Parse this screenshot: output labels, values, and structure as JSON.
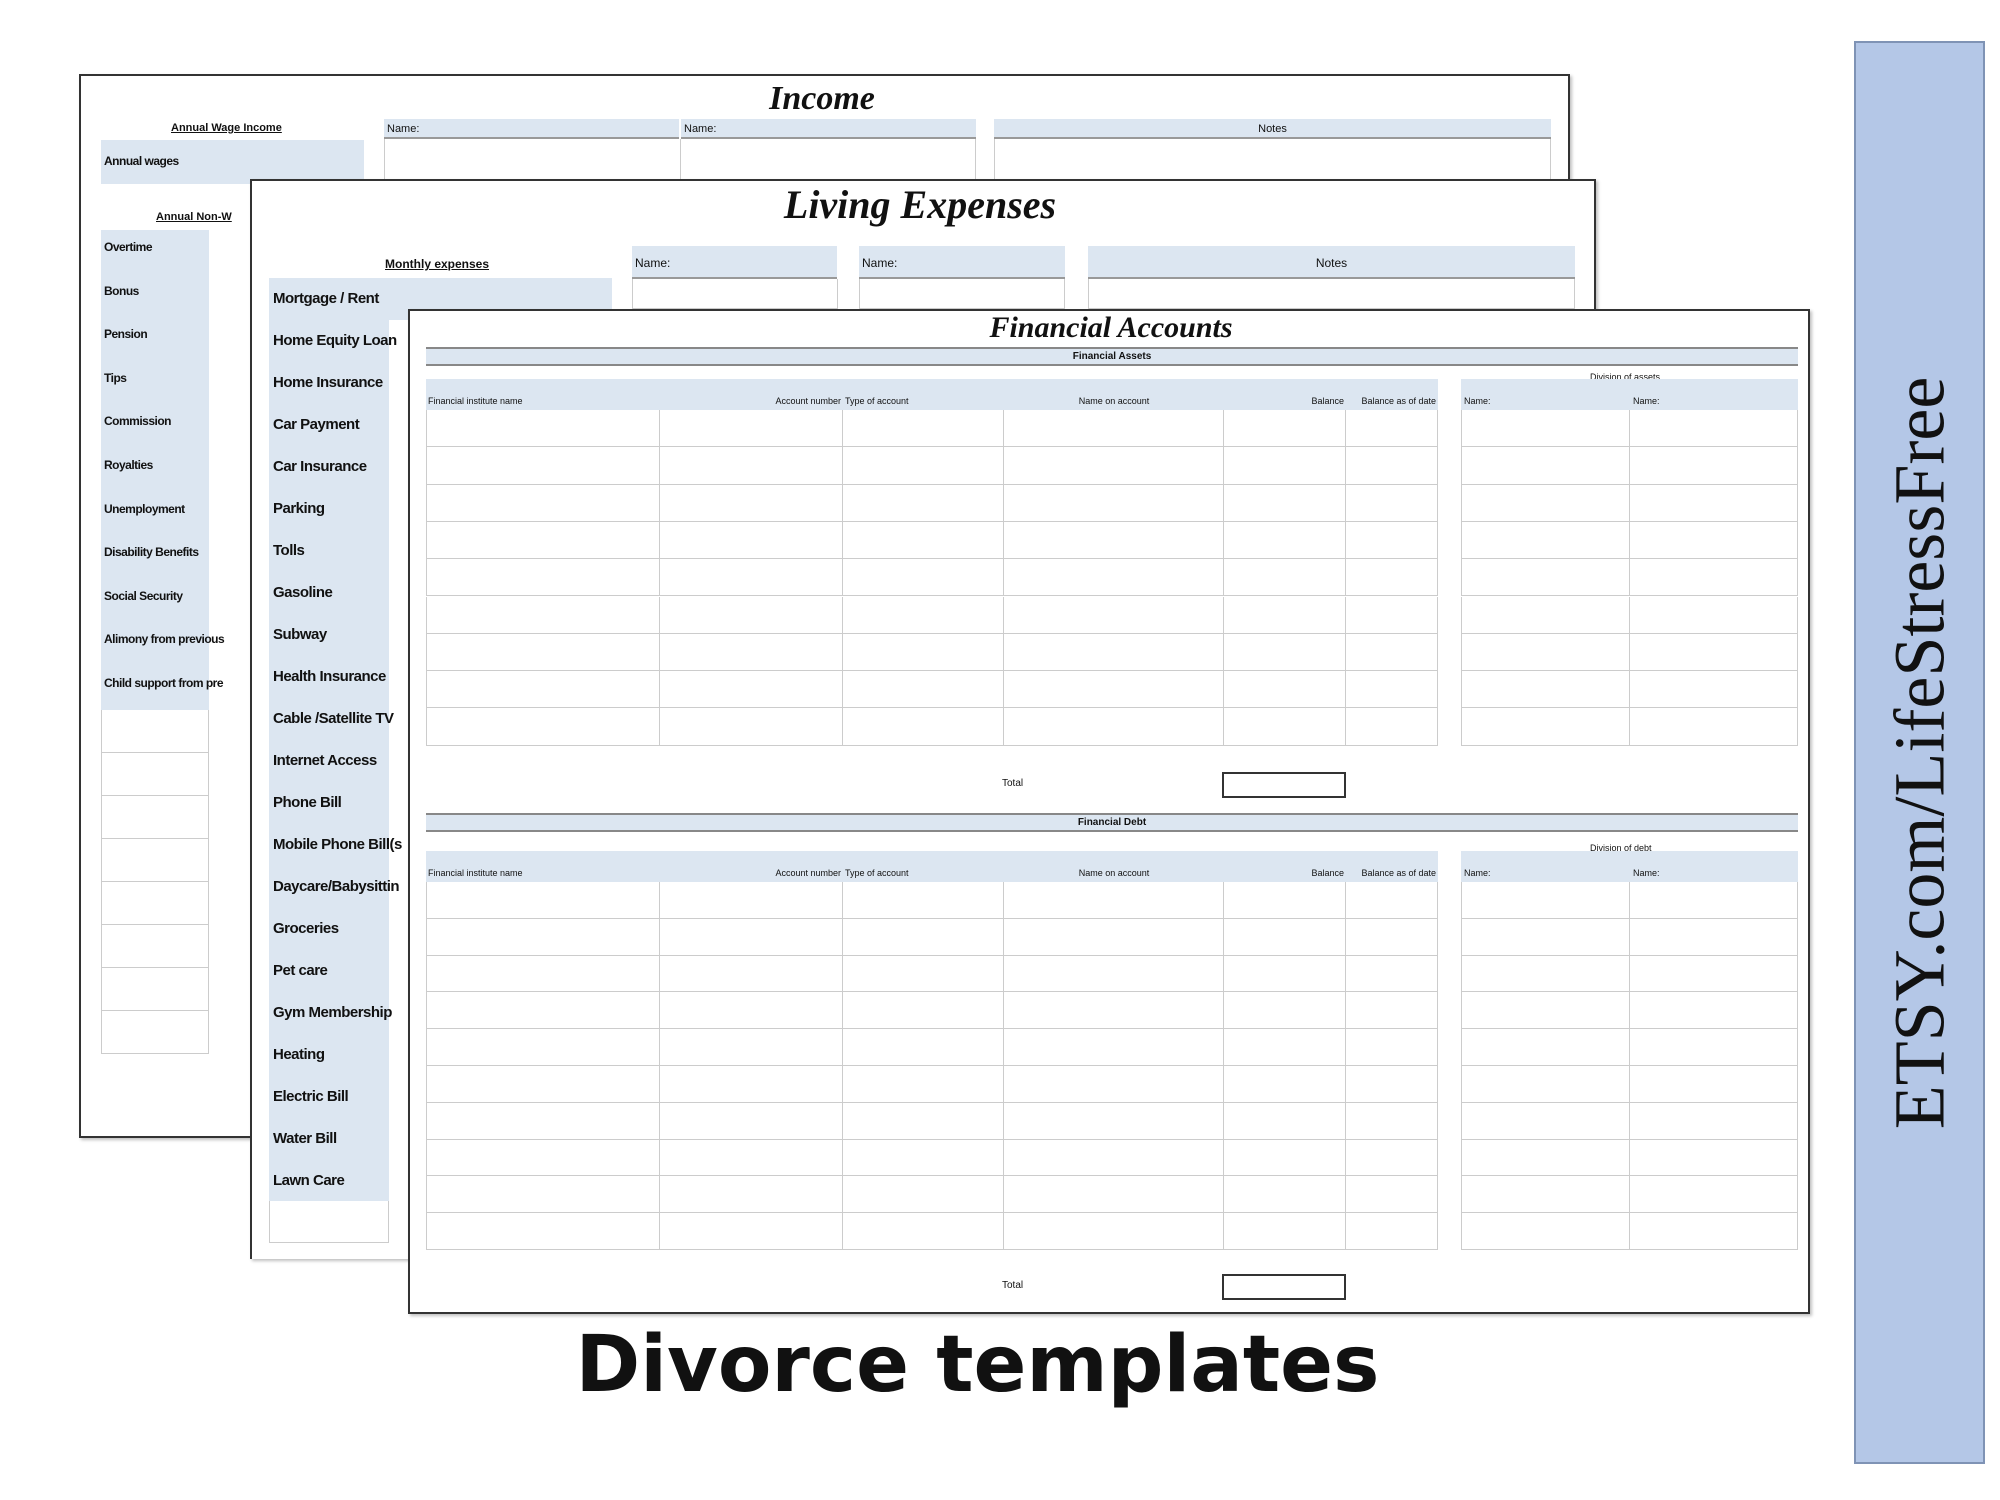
{
  "income": {
    "title": "Income",
    "section1": "Annual Wage Income",
    "name1": "Name:",
    "name2": "Name:",
    "notes": "Notes",
    "wage_label": "Annual wages",
    "section2": "Annual Non-W",
    "rows": [
      "Overtime",
      "Bonus",
      "Pension",
      "Tips",
      "Commission",
      "Royalties",
      "Unemployment",
      "Disability Benefits",
      "Social Security",
      "Alimony from previous",
      "Child support from pre"
    ]
  },
  "living": {
    "title": "Living Expenses",
    "section": "Monthly expenses",
    "name1": "Name:",
    "name2": "Name:",
    "notes": "Notes",
    "rows": [
      "Mortgage / Rent",
      "Home Equity Loan",
      "Home Insurance",
      "Car Payment",
      "Car Insurance",
      "Parking",
      "Tolls",
      "Gasoline",
      "Subway",
      "Health Insurance",
      "Cable /Satellite TV",
      "Internet Access",
      "Phone Bill",
      "Mobile Phone Bill(s",
      "Daycare/Babysittin",
      "Groceries",
      "Pet care",
      "Gym Membership",
      "Heating",
      "Electric Bill",
      "Water Bill",
      "Lawn Care"
    ]
  },
  "financial": {
    "title": "Financial Accounts",
    "assets_label": "Financial Assets",
    "debt_label": "Financial Debt",
    "assets_division": "Division of assets",
    "debt_division": "Division of debt",
    "columns": [
      "Financial institute name",
      "Account number",
      "Type of account",
      "Name on account",
      "Balance",
      "Balance as of date"
    ],
    "division_columns": [
      "Name:",
      "Name:"
    ],
    "total_label": "Total",
    "total_label_debt": "Total"
  },
  "caption": "Divorce templates",
  "sidebar": {
    "text": "ETSY.com/LifeStressFree",
    "color": "#b4c7e7"
  }
}
